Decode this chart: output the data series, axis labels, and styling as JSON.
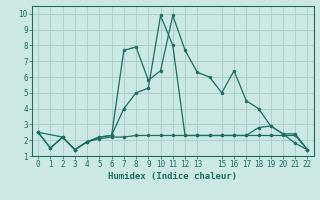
{
  "xlabel": "Humidex (Indice chaleur)",
  "bg_color": "#cce8e4",
  "grid_color": "#aad0cc",
  "line_color": "#1a6e64",
  "xlim": [
    -0.5,
    22.5
  ],
  "ylim": [
    1,
    10.5
  ],
  "xticks": [
    0,
    1,
    2,
    3,
    4,
    5,
    6,
    7,
    8,
    9,
    10,
    11,
    12,
    13,
    15,
    16,
    17,
    18,
    19,
    20,
    21,
    22
  ],
  "yticks": [
    1,
    2,
    3,
    4,
    5,
    6,
    7,
    8,
    9,
    10
  ],
  "line1_x": [
    0,
    1,
    2,
    3,
    4,
    5,
    6,
    7,
    8,
    9,
    10,
    11,
    12,
    13,
    14,
    15,
    16,
    17,
    18,
    19,
    20,
    21,
    22
  ],
  "line1_y": [
    2.5,
    1.5,
    2.2,
    1.4,
    1.9,
    2.2,
    2.3,
    7.7,
    7.9,
    5.8,
    6.4,
    9.9,
    7.7,
    6.3,
    6.0,
    5.0,
    6.4,
    4.5,
    4.0,
    2.9,
    2.4,
    1.8,
    1.4
  ],
  "line2_x": [
    0,
    2,
    3,
    4,
    5,
    6,
    7,
    8,
    9,
    10,
    11,
    12,
    13,
    14,
    15,
    16,
    17,
    18,
    19,
    20,
    21,
    22
  ],
  "line2_y": [
    2.5,
    2.2,
    1.4,
    1.9,
    2.2,
    2.3,
    4.0,
    5.0,
    5.3,
    9.9,
    8.0,
    2.3,
    2.3,
    2.3,
    2.3,
    2.3,
    2.3,
    2.8,
    2.9,
    2.4,
    2.4,
    1.4
  ],
  "line3_x": [
    0,
    1,
    2,
    3,
    4,
    5,
    6,
    7,
    8,
    9,
    10,
    11,
    12,
    13,
    14,
    15,
    16,
    17,
    18,
    19,
    20,
    21,
    22
  ],
  "line3_y": [
    2.5,
    1.5,
    2.2,
    1.4,
    1.9,
    2.1,
    2.2,
    2.2,
    2.3,
    2.3,
    2.3,
    2.3,
    2.3,
    2.3,
    2.3,
    2.3,
    2.3,
    2.3,
    2.3,
    2.3,
    2.3,
    2.3,
    1.4
  ]
}
